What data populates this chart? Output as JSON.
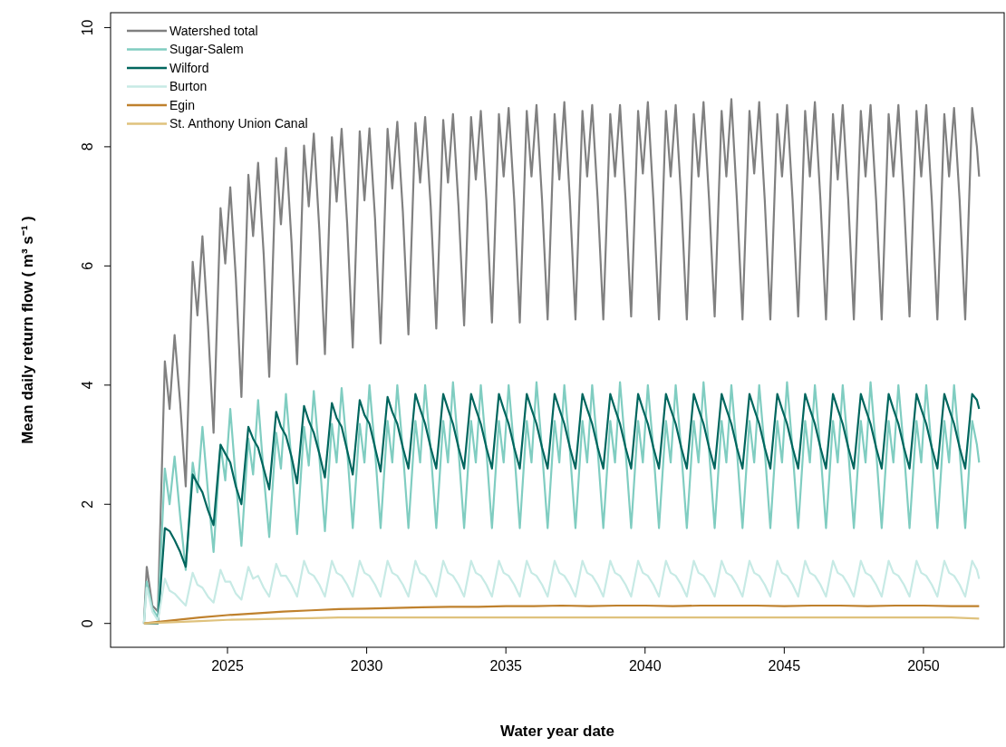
{
  "chart_data": {
    "type": "line",
    "xlabel": "Water year date",
    "ylabel": "Mean daily return flow ( m³ s⁻¹ )",
    "xlim": [
      2020.8,
      2052.9
    ],
    "ylim": [
      -0.4,
      10.25
    ],
    "xticks": [
      2025,
      2030,
      2035,
      2040,
      2045,
      2050
    ],
    "yticks": [
      0,
      2,
      4,
      6,
      8,
      10
    ],
    "grid": false,
    "legend": "top left",
    "x": [
      2022,
      2022.1,
      2022.3,
      2022.5,
      2022.75,
      2022.92,
      2023.1,
      2023.3,
      2023.5,
      2023.75,
      2023.92,
      2024.1,
      2024.3,
      2024.5,
      2024.75,
      2024.92,
      2025.1,
      2025.3,
      2025.5,
      2025.75,
      2025.92,
      2026.1,
      2026.3,
      2026.5,
      2026.75,
      2026.92,
      2027.1,
      2027.3,
      2027.5,
      2027.75,
      2027.92,
      2028.1,
      2028.3,
      2028.5,
      2028.75,
      2028.92,
      2029.1,
      2029.3,
      2029.5,
      2029.75,
      2029.92,
      2030.1,
      2030.3,
      2030.5,
      2030.75,
      2030.92,
      2031.1,
      2031.3,
      2031.5,
      2031.75,
      2031.92,
      2032.1,
      2032.3,
      2032.5,
      2032.75,
      2032.92,
      2033.1,
      2033.3,
      2033.5,
      2033.75,
      2033.92,
      2034.1,
      2034.3,
      2034.5,
      2034.75,
      2034.92,
      2035.1,
      2035.3,
      2035.5,
      2035.75,
      2035.92,
      2036.1,
      2036.3,
      2036.5,
      2036.75,
      2036.92,
      2037.1,
      2037.3,
      2037.5,
      2037.75,
      2037.92,
      2038.1,
      2038.3,
      2038.5,
      2038.75,
      2038.92,
      2039.1,
      2039.3,
      2039.5,
      2039.75,
      2039.92,
      2040.1,
      2040.3,
      2040.5,
      2040.75,
      2040.92,
      2041.1,
      2041.3,
      2041.5,
      2041.75,
      2041.92,
      2042.1,
      2042.3,
      2042.5,
      2042.75,
      2042.92,
      2043.1,
      2043.3,
      2043.5,
      2043.75,
      2043.92,
      2044.1,
      2044.3,
      2044.5,
      2044.75,
      2044.92,
      2045.1,
      2045.3,
      2045.5,
      2045.75,
      2045.92,
      2046.1,
      2046.3,
      2046.5,
      2046.75,
      2046.92,
      2047.1,
      2047.3,
      2047.5,
      2047.75,
      2047.92,
      2048.1,
      2048.3,
      2048.5,
      2048.75,
      2048.92,
      2049.1,
      2049.3,
      2049.5,
      2049.75,
      2049.92,
      2050.1,
      2050.3,
      2050.5,
      2050.75,
      2050.92,
      2051.1,
      2051.3,
      2051.5,
      2051.75,
      2051.92,
      2052
    ],
    "series": [
      {
        "name": "Watershed total",
        "color": "#808080",
        "values": [
          0,
          0.95,
          0.3,
          0.2,
          4.4,
          3.6,
          4.84,
          3.7,
          2.3,
          6.07,
          5.17,
          6.5,
          5.0,
          3.2,
          6.97,
          6.04,
          7.32,
          5.8,
          3.8,
          7.53,
          6.5,
          7.73,
          6.2,
          4.14,
          7.81,
          6.7,
          7.98,
          6.4,
          4.35,
          8.02,
          7.0,
          8.22,
          6.6,
          4.52,
          8.16,
          7.08,
          8.3,
          6.7,
          4.63,
          8.26,
          7.1,
          8.31,
          6.8,
          4.7,
          8.3,
          7.3,
          8.42,
          6.9,
          4.85,
          8.4,
          7.4,
          8.5,
          7.0,
          4.95,
          8.45,
          7.4,
          8.55,
          7.0,
          5.0,
          8.5,
          7.45,
          8.6,
          7.1,
          5.05,
          8.55,
          7.5,
          8.65,
          7.1,
          5.05,
          8.6,
          7.5,
          8.7,
          7.1,
          5.1,
          8.55,
          7.45,
          8.75,
          7.1,
          5.1,
          8.6,
          7.5,
          8.7,
          7.1,
          5.1,
          8.55,
          7.5,
          8.7,
          7.1,
          5.15,
          8.6,
          7.55,
          8.75,
          7.1,
          5.1,
          8.6,
          7.5,
          8.7,
          7.1,
          5.1,
          8.55,
          7.5,
          8.75,
          7.1,
          5.15,
          8.6,
          7.5,
          8.8,
          7.1,
          5.1,
          8.6,
          7.55,
          8.75,
          7.1,
          5.1,
          8.55,
          7.5,
          8.7,
          7.1,
          5.15,
          8.6,
          7.5,
          8.75,
          7.1,
          5.1,
          8.55,
          7.45,
          8.7,
          7.1,
          5.1,
          8.6,
          7.5,
          8.7,
          7.1,
          5.1,
          8.55,
          7.5,
          8.7,
          7.1,
          5.15,
          8.6,
          7.5,
          8.7,
          7.1,
          5.1,
          8.55,
          7.5,
          8.65,
          7.1,
          5.1,
          8.65,
          8.0,
          7.5
        ]
      },
      {
        "name": "Sugar-Salem",
        "color": "#80cdc1",
        "values": [
          0,
          0.7,
          0.25,
          0.1,
          2.6,
          2.0,
          2.8,
          1.8,
          0.9,
          2.7,
          2.2,
          3.3,
          2.2,
          1.2,
          3.0,
          2.4,
          3.6,
          2.4,
          1.3,
          3.1,
          2.5,
          3.75,
          2.5,
          1.45,
          3.2,
          2.6,
          3.85,
          2.7,
          1.5,
          3.3,
          2.65,
          3.9,
          2.8,
          1.55,
          3.35,
          2.7,
          3.95,
          2.9,
          1.6,
          3.35,
          2.7,
          4.0,
          2.9,
          1.6,
          3.4,
          2.7,
          4.0,
          2.9,
          1.6,
          3.4,
          2.7,
          4.0,
          2.9,
          1.6,
          3.4,
          2.7,
          4.05,
          2.9,
          1.6,
          3.4,
          2.7,
          4.0,
          2.9,
          1.6,
          3.4,
          2.7,
          4.0,
          2.9,
          1.6,
          3.4,
          2.7,
          4.05,
          2.9,
          1.6,
          3.4,
          2.7,
          4.0,
          2.9,
          1.6,
          3.4,
          2.7,
          4.0,
          2.9,
          1.6,
          3.4,
          2.7,
          4.05,
          2.9,
          1.6,
          3.4,
          2.7,
          4.0,
          2.9,
          1.6,
          3.4,
          2.7,
          4.0,
          2.9,
          1.6,
          3.4,
          2.7,
          4.05,
          2.9,
          1.6,
          3.4,
          2.7,
          4.0,
          2.9,
          1.6,
          3.4,
          2.7,
          4.0,
          2.9,
          1.6,
          3.4,
          2.7,
          4.05,
          2.9,
          1.6,
          3.4,
          2.7,
          4.0,
          2.9,
          1.6,
          3.4,
          2.7,
          4.0,
          2.9,
          1.6,
          3.4,
          2.7,
          4.05,
          2.9,
          1.6,
          3.4,
          2.7,
          4.0,
          2.9,
          1.6,
          3.4,
          2.7,
          4.0,
          2.9,
          1.6,
          3.4,
          2.7,
          4.0,
          2.9,
          1.6,
          3.4,
          3.0,
          2.7
        ]
      },
      {
        "name": "Wilford",
        "color": "#01665e",
        "values": [
          0,
          0,
          0,
          0,
          1.6,
          1.55,
          1.4,
          1.2,
          0.95,
          2.5,
          2.35,
          2.2,
          1.9,
          1.65,
          3.0,
          2.85,
          2.7,
          2.3,
          2.0,
          3.3,
          3.1,
          2.95,
          2.6,
          2.25,
          3.55,
          3.3,
          3.15,
          2.8,
          2.35,
          3.65,
          3.4,
          3.2,
          2.85,
          2.45,
          3.7,
          3.45,
          3.3,
          2.9,
          2.5,
          3.75,
          3.5,
          3.35,
          2.95,
          2.55,
          3.8,
          3.55,
          3.35,
          2.95,
          2.6,
          3.85,
          3.6,
          3.35,
          2.95,
          2.6,
          3.85,
          3.6,
          3.35,
          2.95,
          2.6,
          3.85,
          3.6,
          3.35,
          2.95,
          2.6,
          3.85,
          3.6,
          3.35,
          2.95,
          2.6,
          3.85,
          3.6,
          3.35,
          2.95,
          2.6,
          3.85,
          3.6,
          3.35,
          2.95,
          2.6,
          3.85,
          3.6,
          3.35,
          2.95,
          2.6,
          3.85,
          3.6,
          3.35,
          2.95,
          2.6,
          3.85,
          3.6,
          3.35,
          2.95,
          2.6,
          3.85,
          3.6,
          3.35,
          2.95,
          2.6,
          3.85,
          3.6,
          3.35,
          2.95,
          2.6,
          3.85,
          3.6,
          3.35,
          2.95,
          2.6,
          3.85,
          3.6,
          3.35,
          2.95,
          2.6,
          3.85,
          3.6,
          3.35,
          2.95,
          2.6,
          3.85,
          3.6,
          3.35,
          2.95,
          2.6,
          3.85,
          3.6,
          3.35,
          2.95,
          2.6,
          3.85,
          3.6,
          3.35,
          2.95,
          2.6,
          3.85,
          3.6,
          3.35,
          2.95,
          2.6,
          3.85,
          3.6,
          3.35,
          2.95,
          2.6,
          3.85,
          3.6,
          3.35,
          2.95,
          2.6,
          3.85,
          3.75,
          3.6
        ]
      },
      {
        "name": "Burton",
        "color": "#c7eae5",
        "values": [
          0,
          0.6,
          0.2,
          0.05,
          0.75,
          0.55,
          0.5,
          0.4,
          0.3,
          0.85,
          0.65,
          0.6,
          0.45,
          0.35,
          0.9,
          0.7,
          0.7,
          0.5,
          0.4,
          0.95,
          0.75,
          0.8,
          0.6,
          0.45,
          1.0,
          0.8,
          0.8,
          0.65,
          0.45,
          1.05,
          0.85,
          0.8,
          0.65,
          0.45,
          1.05,
          0.85,
          0.8,
          0.65,
          0.45,
          1.05,
          0.85,
          0.8,
          0.65,
          0.45,
          1.05,
          0.85,
          0.8,
          0.65,
          0.45,
          1.05,
          0.85,
          0.8,
          0.65,
          0.45,
          1.05,
          0.85,
          0.8,
          0.65,
          0.45,
          1.05,
          0.85,
          0.8,
          0.65,
          0.45,
          1.05,
          0.85,
          0.8,
          0.65,
          0.45,
          1.05,
          0.85,
          0.8,
          0.65,
          0.45,
          1.05,
          0.85,
          0.8,
          0.65,
          0.45,
          1.05,
          0.85,
          0.8,
          0.65,
          0.45,
          1.05,
          0.85,
          0.8,
          0.65,
          0.45,
          1.05,
          0.85,
          0.8,
          0.65,
          0.45,
          1.05,
          0.85,
          0.8,
          0.65,
          0.45,
          1.05,
          0.85,
          0.8,
          0.65,
          0.45,
          1.05,
          0.85,
          0.8,
          0.65,
          0.45,
          1.05,
          0.85,
          0.8,
          0.65,
          0.45,
          1.05,
          0.85,
          0.8,
          0.65,
          0.45,
          1.05,
          0.85,
          0.8,
          0.65,
          0.45,
          1.05,
          0.85,
          0.8,
          0.65,
          0.45,
          1.05,
          0.85,
          0.8,
          0.65,
          0.45,
          1.05,
          0.85,
          0.8,
          0.65,
          0.45,
          1.05,
          0.85,
          0.8,
          0.65,
          0.45,
          1.05,
          0.85,
          0.8,
          0.65,
          0.45,
          1.05,
          0.9,
          0.75
        ]
      },
      {
        "name": "Egin",
        "color": "#bf812d",
        "x": [
          2022,
          2023,
          2024,
          2025,
          2026,
          2027,
          2028,
          2029,
          2030,
          2031,
          2032,
          2033,
          2034,
          2035,
          2036,
          2037,
          2038,
          2039,
          2040,
          2041,
          2042,
          2043,
          2044,
          2045,
          2046,
          2047,
          2048,
          2049,
          2050,
          2051,
          2052
        ],
        "values": [
          0,
          0.05,
          0.1,
          0.14,
          0.17,
          0.2,
          0.22,
          0.24,
          0.25,
          0.26,
          0.27,
          0.28,
          0.28,
          0.29,
          0.29,
          0.3,
          0.29,
          0.3,
          0.3,
          0.29,
          0.3,
          0.3,
          0.3,
          0.29,
          0.3,
          0.3,
          0.29,
          0.3,
          0.3,
          0.29,
          0.29
        ]
      },
      {
        "name": "St. Anthony Union Canal",
        "color": "#dfc27d",
        "x": [
          2022,
          2023,
          2024,
          2025,
          2026,
          2027,
          2028,
          2029,
          2030,
          2031,
          2032,
          2033,
          2034,
          2035,
          2036,
          2037,
          2038,
          2039,
          2040,
          2041,
          2042,
          2043,
          2044,
          2045,
          2046,
          2047,
          2048,
          2049,
          2050,
          2051,
          2052
        ],
        "values": [
          0,
          0.02,
          0.04,
          0.06,
          0.07,
          0.08,
          0.09,
          0.1,
          0.1,
          0.1,
          0.1,
          0.1,
          0.1,
          0.1,
          0.1,
          0.1,
          0.1,
          0.1,
          0.1,
          0.1,
          0.1,
          0.1,
          0.1,
          0.1,
          0.1,
          0.1,
          0.1,
          0.1,
          0.1,
          0.1,
          0.08
        ]
      }
    ]
  }
}
